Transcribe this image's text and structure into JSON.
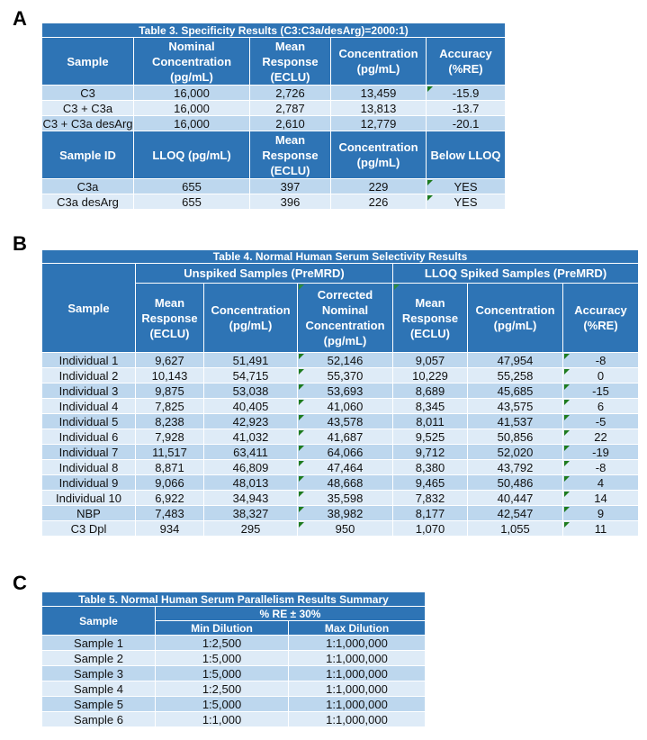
{
  "panels": {
    "a": "A",
    "b": "B",
    "c": "C"
  },
  "table_a": {
    "title": "Table 3. Specificity Results (C3:C3a/desArg)=2000:1)",
    "headers1": [
      "Sample",
      "Nominal Concentration (pg/mL)",
      "Mean Response (ECLU)",
      "Concentration (pg/mL)",
      "Accuracy (%RE)"
    ],
    "rows1": [
      [
        "C3",
        "16,000",
        "2,726",
        "13,459",
        "-15.9"
      ],
      [
        "C3 + C3a",
        "16,000",
        "2,787",
        "13,813",
        "-13.7"
      ],
      [
        "C3 + C3a desArg",
        "16,000",
        "2,610",
        "12,779",
        "-20.1"
      ]
    ],
    "headers2": [
      "Sample ID",
      "LLOQ (pg/mL)",
      "Mean Response (ECLU)",
      "Concentration (pg/mL)",
      "Below LLOQ"
    ],
    "rows2": [
      [
        "C3a",
        "655",
        "397",
        "229",
        "YES"
      ],
      [
        "C3a desArg",
        "655",
        "396",
        "226",
        "YES"
      ]
    ]
  },
  "table_b": {
    "title": "Table 4. Normal Human Serum Selectivity Results",
    "group_unspiked": "Unspiked Samples (PreMRD)",
    "group_spiked": "LLOQ Spiked Samples (PreMRD)",
    "headers": [
      "Sample",
      "Mean Response (ECLU)",
      "Concentration (pg/mL)",
      "Corrected Nominal Concentration (pg/mL)",
      "Mean Response (ECLU)",
      "Concentration (pg/mL)",
      "Accuracy (%RE)"
    ],
    "rows": [
      [
        "Individual 1",
        "9,627",
        "51,491",
        "52,146",
        "9,057",
        "47,954",
        "-8"
      ],
      [
        "Individual 2",
        "10,143",
        "54,715",
        "55,370",
        "10,229",
        "55,258",
        "0"
      ],
      [
        "Individual 3",
        "9,875",
        "53,038",
        "53,693",
        "8,689",
        "45,685",
        "-15"
      ],
      [
        "Individual 4",
        "7,825",
        "40,405",
        "41,060",
        "8,345",
        "43,575",
        "6"
      ],
      [
        "Individual 5",
        "8,238",
        "42,923",
        "43,578",
        "8,011",
        "41,537",
        "-5"
      ],
      [
        "Individual 6",
        "7,928",
        "41,032",
        "41,687",
        "9,525",
        "50,856",
        "22"
      ],
      [
        "Individual 7",
        "11,517",
        "63,411",
        "64,066",
        "9,712",
        "52,020",
        "-19"
      ],
      [
        "Individual 8",
        "8,871",
        "46,809",
        "47,464",
        "8,380",
        "43,792",
        "-8"
      ],
      [
        "Individual 9",
        "9,066",
        "48,013",
        "48,668",
        "9,465",
        "50,486",
        "4"
      ],
      [
        "Individual 10",
        "6,922",
        "34,943",
        "35,598",
        "7,832",
        "40,447",
        "14"
      ],
      [
        "NBP",
        "7,483",
        "38,327",
        "38,982",
        "8,177",
        "42,547",
        "9"
      ],
      [
        "C3 Dpl",
        "934",
        "295",
        "950",
        "1,070",
        "1,055",
        "11"
      ]
    ]
  },
  "table_c": {
    "title": "Table 5. Normal Human Serum Parallelism Results Summary",
    "sample_header": "Sample",
    "group_header": "% RE ± 30%",
    "sub_headers": [
      "Min Dilution",
      "Max Dilution"
    ],
    "rows": [
      [
        "Sample 1",
        "1:2,500",
        "1:1,000,000"
      ],
      [
        "Sample 2",
        "1:5,000",
        "1:1,000,000"
      ],
      [
        "Sample 3",
        "1:5,000",
        "1:1,000,000"
      ],
      [
        "Sample 4",
        "1:2,500",
        "1:1,000,000"
      ],
      [
        "Sample 5",
        "1:5,000",
        "1:1,000,000"
      ],
      [
        "Sample 6",
        "1:1,000",
        "1:1,000,000"
      ]
    ]
  }
}
